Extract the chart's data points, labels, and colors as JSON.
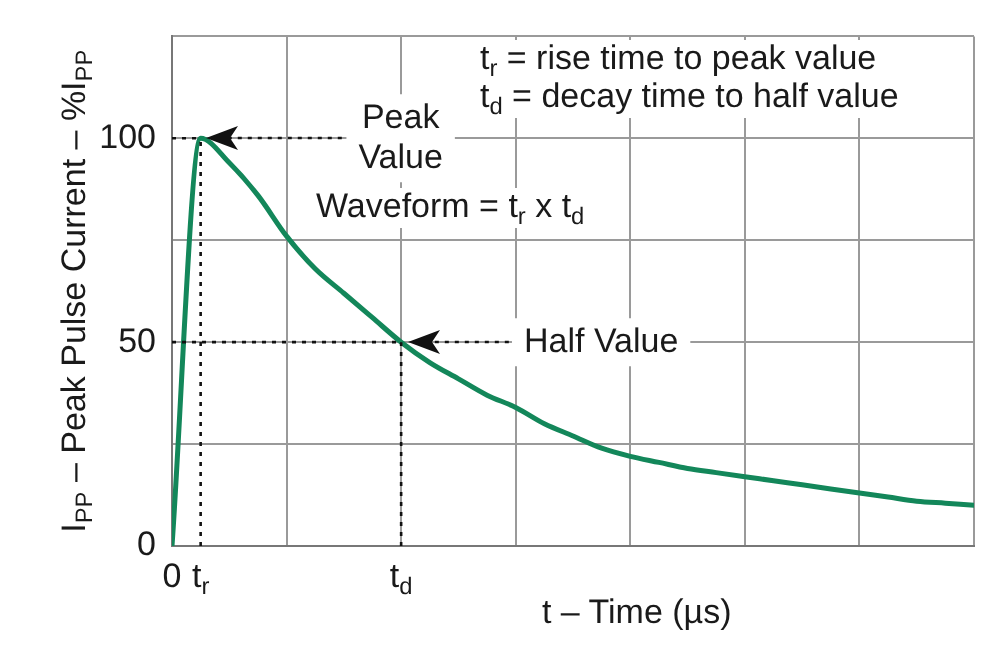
{
  "chart_data": {
    "type": "line",
    "xlabel": "t – Time (µs)",
    "ylabel": "I$_{PP}$ – Peak Pulse Current – %I$_{PP}$",
    "categories": [
      "0",
      "t$_{r}$",
      null,
      null,
      null,
      null,
      null,
      null,
      "t$_{d}$",
      null,
      null,
      null,
      null,
      null,
      null,
      null,
      null,
      null,
      null,
      null,
      null,
      null,
      null,
      null,
      null,
      null,
      null,
      null,
      null
    ],
    "series": [
      {
        "color": "#13875a",
        "values": [
          0,
          100,
          94,
          86,
          76,
          68,
          62,
          56,
          50,
          45,
          41,
          37,
          34,
          30,
          27,
          24,
          22,
          20.5,
          19,
          18,
          17,
          16,
          15,
          14,
          13,
          12,
          11,
          10.5,
          10
        ]
      }
    ],
    "ylim": [
      0,
      125
    ],
    "yticks": [
      0,
      {
        "value": 25,
        "label": null
      },
      50,
      {
        "value": 75,
        "label": null
      },
      100,
      {
        "value": 125,
        "label": null
      }
    ],
    "grid": true,
    "marker": "none",
    "line_style": "solid",
    "ref_lines": [
      {
        "axis": "x",
        "value": "t$_{r}$",
        "line_style": "dotted"
      },
      {
        "axis": "x",
        "value": "t$_{d}$",
        "line_style": "dotted"
      },
      {
        "axis": "y",
        "value": 100,
        "line_style": "dotted"
      },
      {
        "axis": "y",
        "value": 50,
        "line_style": "dotted"
      }
    ],
    "annotations": [
      "t$_{r}$ = rise time to peak value",
      "t$_{d}$ = decay time to half value",
      "Waveform = t$_{r}$ x t$_{d}$",
      "Peak Value",
      "Half Value"
    ]
  }
}
